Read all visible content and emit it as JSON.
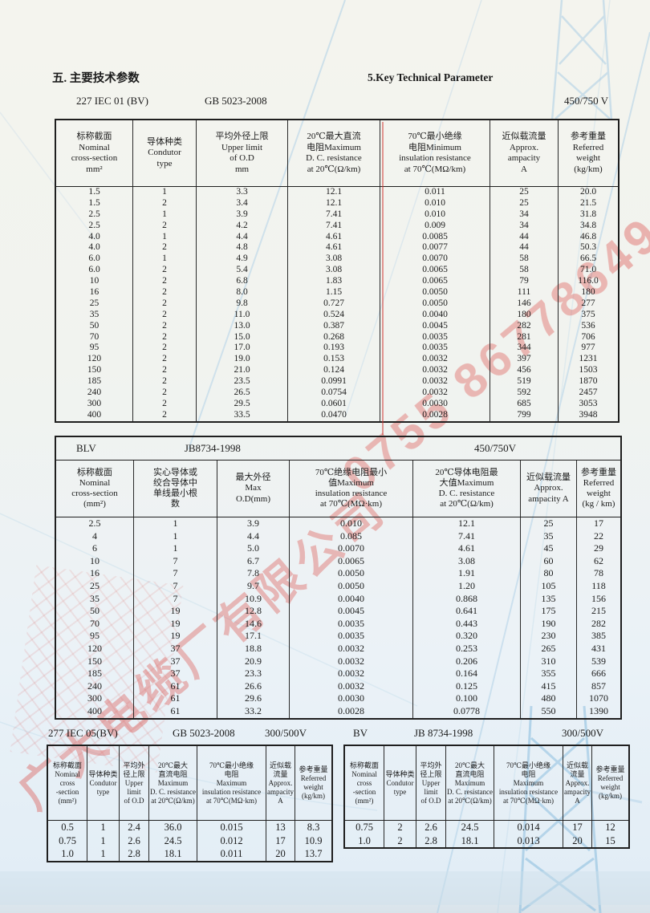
{
  "page": {
    "title_cn": "五. 主要技术参数",
    "title_en": "5.Key  Technical Parameter"
  },
  "watermark": {
    "company": "广大电缆厂有限公司",
    "phone": "0755 86778649",
    "color": "#db4a44"
  },
  "tables": [
    {
      "meta": {
        "model": "227 IEC 01 (BV)",
        "standard": "GB 5023-2008",
        "voltage": "450/750 V"
      },
      "columns": [
        {
          "lines": [
            "标称截面",
            "Nominal",
            "cross-section",
            "mm²"
          ]
        },
        {
          "lines": [
            "导体种类",
            "Condutor",
            "type"
          ]
        },
        {
          "lines": [
            "平均外径上限",
            "Upper limit",
            "of O.D",
            "mm"
          ]
        },
        {
          "lines": [
            "20℃最大直流",
            "电阻Maximum",
            "D. C. resistance",
            "at 20℃(Ω/km)"
          ]
        },
        {
          "lines": [
            "70℃最小绝缘",
            "电阻Minimum",
            "insulation resistance",
            "at 70℃(MΩ/km)"
          ]
        },
        {
          "lines": [
            "近似载流量",
            "Approx.",
            "ampacity",
            "A"
          ]
        },
        {
          "lines": [
            "参考重量",
            "Referred",
            "weight",
            "(kg/km)"
          ]
        }
      ],
      "rows": [
        [
          "1.5",
          "1",
          "3.3",
          "12.1",
          "0.011",
          "25",
          "20.0"
        ],
        [
          "1.5",
          "2",
          "3.4",
          "12.1",
          "0.010",
          "25",
          "21.5"
        ],
        [
          "2.5",
          "1",
          "3.9",
          "7.41",
          "0.010",
          "34",
          "31.8"
        ],
        [
          "2.5",
          "2",
          "4.2",
          "7.41",
          "0.009",
          "34",
          "34.8"
        ],
        [
          "4.0",
          "1",
          "4.4",
          "4.61",
          "0.0085",
          "44",
          "46.8"
        ],
        [
          "4.0",
          "2",
          "4.8",
          "4.61",
          "0.0077",
          "44",
          "50.3"
        ],
        [
          "6.0",
          "1",
          "4.9",
          "3.08",
          "0.0070",
          "58",
          "66.5"
        ],
        [
          "6.0",
          "2",
          "5.4",
          "3.08",
          "0.0065",
          "58",
          "71.0"
        ],
        [
          "10",
          "2",
          "6.8",
          "1.83",
          "0.0065",
          "79",
          "116.0"
        ],
        [
          "16",
          "2",
          "8.0",
          "1.15",
          "0.0050",
          "111",
          "180"
        ],
        [
          "25",
          "2",
          "9.8",
          "0.727",
          "0.0050",
          "146",
          "277"
        ],
        [
          "35",
          "2",
          "11.0",
          "0.524",
          "0.0040",
          "180",
          "375"
        ],
        [
          "50",
          "2",
          "13.0",
          "0.387",
          "0.0045",
          "282",
          "536"
        ],
        [
          "70",
          "2",
          "15.0",
          "0.268",
          "0.0035",
          "281",
          "706"
        ],
        [
          "95",
          "2",
          "17.0",
          "0.193",
          "0.0035",
          "344",
          "977"
        ],
        [
          "120",
          "2",
          "19.0",
          "0.153",
          "0.0032",
          "397",
          "1231"
        ],
        [
          "150",
          "2",
          "21.0",
          "0.124",
          "0.0032",
          "456",
          "1503"
        ],
        [
          "185",
          "2",
          "23.5",
          "0.0991",
          "0.0032",
          "519",
          "1870"
        ],
        [
          "240",
          "2",
          "26.5",
          "0.0754",
          "0.0032",
          "592",
          "2457"
        ],
        [
          "300",
          "2",
          "29.5",
          "0.0601",
          "0.0030",
          "685",
          "3053"
        ],
        [
          "400",
          "2",
          "33.5",
          "0.0470",
          "0.0028",
          "799",
          "3948"
        ]
      ]
    },
    {
      "meta": {
        "model": "BLV",
        "standard": "JB8734-1998",
        "voltage": "450/750V"
      },
      "columns": [
        {
          "lines": [
            "标称截面",
            "Nominal",
            "cross-section",
            "(mm²)"
          ]
        },
        {
          "lines": [
            "实心导体或",
            "绞合导体中",
            "单线最小根",
            "数"
          ]
        },
        {
          "lines": [
            "最大外径",
            "Max",
            "O.D(mm)"
          ]
        },
        {
          "lines": [
            "70℃绝缘电阻最小",
            "值Maximum",
            "insulation resistance",
            "at 70℃(MΩ·km)"
          ]
        },
        {
          "lines": [
            "20℃导体电阻最",
            "大值Maximum",
            "D. C. resistance",
            "at 20℃(Ω/km)"
          ]
        },
        {
          "lines": [
            "近似载流量",
            "Approx.",
            "ampacity A"
          ]
        },
        {
          "lines": [
            "参考重量",
            "Referred",
            "weight",
            "(kg / km)"
          ]
        }
      ],
      "rows": [
        [
          "2.5",
          "1",
          "3.9",
          "0.010",
          "12.1",
          "25",
          "17"
        ],
        [
          "4",
          "1",
          "4.4",
          "0.085",
          "7.41",
          "35",
          "22"
        ],
        [
          "6",
          "1",
          "5.0",
          "0.0070",
          "4.61",
          "45",
          "29"
        ],
        [
          "10",
          "7",
          "6.7",
          "0.0065",
          "3.08",
          "60",
          "62"
        ],
        [
          "16",
          "7",
          "7.8",
          "0.0050",
          "1.91",
          "80",
          "78"
        ],
        [
          "25",
          "7",
          "9.7",
          "0.0050",
          "1.20",
          "105",
          "118"
        ],
        [
          "35",
          "7",
          "10.9",
          "0.0040",
          "0.868",
          "135",
          "156"
        ],
        [
          "50",
          "19",
          "12.8",
          "0.0045",
          "0.641",
          "175",
          "215"
        ],
        [
          "70",
          "19",
          "14.6",
          "0.0035",
          "0.443",
          "190",
          "282"
        ],
        [
          "95",
          "19",
          "17.1",
          "0.0035",
          "0.320",
          "230",
          "385"
        ],
        [
          "120",
          "37",
          "18.8",
          "0.0032",
          "0.253",
          "265",
          "431"
        ],
        [
          "150",
          "37",
          "20.9",
          "0.0032",
          "0.206",
          "310",
          "539"
        ],
        [
          "185",
          "37",
          "23.3",
          "0.0032",
          "0.164",
          "355",
          "666"
        ],
        [
          "240",
          "61",
          "26.6",
          "0.0032",
          "0.125",
          "415",
          "857"
        ],
        [
          "300",
          "61",
          "29.6",
          "0.0030",
          "0.100",
          "480",
          "1070"
        ],
        [
          "400",
          "61",
          "33.2",
          "0.0028",
          "0.0778",
          "550",
          "1390"
        ]
      ]
    },
    {
      "meta": {
        "model": "277 IEC  05(BV)",
        "standard": "GB 5023-2008",
        "voltage": "300/500V"
      },
      "columns": [
        {
          "lines": [
            "标称截面",
            "Nominal",
            "cross",
            "-section",
            "(mm²)"
          ]
        },
        {
          "lines": [
            "导体种类",
            "Condutor",
            "type"
          ]
        },
        {
          "lines": [
            "平均外",
            "径上限",
            "Upper",
            "limit",
            "of O.D"
          ]
        },
        {
          "lines": [
            "20℃最大",
            "直流电阻",
            "Maximum",
            "D. C. resistance",
            "at 20℃(Ω/km)"
          ]
        },
        {
          "lines": [
            "70℃最小绝缘",
            "电阻",
            "Maximum",
            "insulation resistance",
            "at 70℃(MΩ·km)"
          ]
        },
        {
          "lines": [
            "近似载",
            "流量",
            "Approx.",
            "ampacity",
            "A"
          ]
        },
        {
          "lines": [
            "参考重量",
            "Referred",
            "weight",
            "(kg/km)"
          ]
        }
      ],
      "rows": [
        [
          "0.5",
          "1",
          "2.4",
          "36.0",
          "0.015",
          "13",
          "8.3"
        ],
        [
          "0.75",
          "1",
          "2.6",
          "24.5",
          "0.012",
          "17",
          "10.9"
        ],
        [
          "1.0",
          "1",
          "2.8",
          "18.1",
          "0.011",
          "20",
          "13.7"
        ]
      ]
    },
    {
      "meta": {
        "model": "BV",
        "standard": "JB 8734-1998",
        "voltage": "300/500V"
      },
      "columns": [
        {
          "lines": [
            "标称截面",
            "Nominal",
            "cross",
            "-section",
            "(mm²)"
          ]
        },
        {
          "lines": [
            "导体种类",
            "Condutor",
            "type"
          ]
        },
        {
          "lines": [
            "平均外",
            "径上限",
            "Upper",
            "limit",
            "of O.D"
          ]
        },
        {
          "lines": [
            "20℃最大",
            "直流电阻",
            "Maximum",
            "D. C. resistance",
            "at 20℃(Ω/km)"
          ]
        },
        {
          "lines": [
            "70℃最小绝缘",
            "电阻",
            "Maximum",
            "insulation resistance",
            "at 70℃(MΩ·km)"
          ]
        },
        {
          "lines": [
            "近似载",
            "流量",
            "Approx.",
            "ampacity",
            "A"
          ]
        },
        {
          "lines": [
            "参考重量",
            "Referred",
            "weight",
            "(kg/km)"
          ]
        }
      ],
      "rows": [
        [
          "0.75",
          "2",
          "2.6",
          "24.5",
          "0.014",
          "17",
          "12"
        ],
        [
          "1.0",
          "2",
          "2.8",
          "18.1",
          "0.013",
          "20",
          "15"
        ]
      ]
    }
  ]
}
